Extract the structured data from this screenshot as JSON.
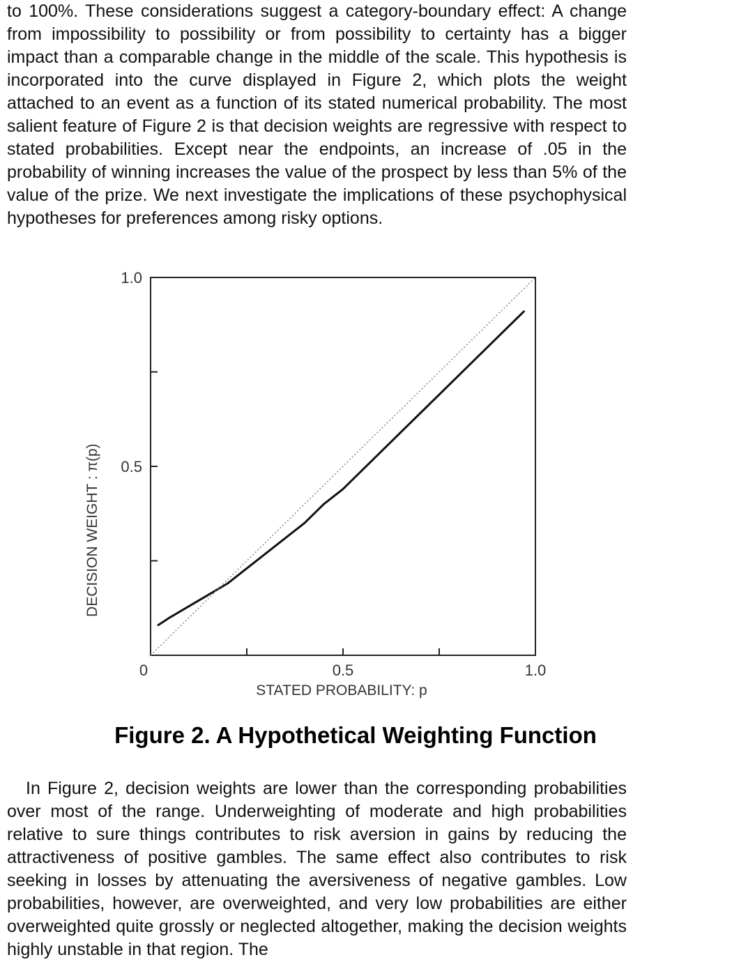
{
  "top_paragraph": "to 100%. These considerations suggest a category-boundary effect: A change from impossibility to possibility or from possibility to certainty has a bigger impact than a comparable change in the middle of the scale. This hypothesis is incorporated into the curve displayed in Figure 2, which plots the weight attached to an event as a function of its stated numerical probability. The most salient feature of Figure 2 is that decision weights are regressive with respect to stated probabilities. Except near the endpoints, an increase of .05 in the probability of winning increases the value of the prospect by less than 5% of the value of the prize. We next investigate the implications of these psychophysical hypotheses for preferences among risky options.",
  "figure_caption": "Figure 2. A Hypothetical Weighting Function",
  "bottom_paragraph": "In Figure 2, decision weights are lower than the corresponding probabilities over most of the range. Underweighting of moderate and high probabilities relative to sure things contributes to risk aversion in gains by reducing the attractiveness of positive gambles. The same effect also contributes to risk seeking in losses by attenuating the aversiveness of negative gambles. Low probabilities, however, are overweighted, and very low probabilities are either overweighted quite grossly or neglected altogether, making the decision weights highly unstable in that region. The",
  "chart_data": {
    "type": "line",
    "title": "",
    "xlabel": "STATED PROBABILITY: p",
    "ylabel": "DECISION WEIGHT : π(p)",
    "xlim": [
      0,
      1.0
    ],
    "ylim": [
      0,
      1.0
    ],
    "x_tick_labels": [
      {
        "value": 0,
        "label": "0"
      },
      {
        "value": 0.5,
        "label": "0.5"
      },
      {
        "value": 1.0,
        "label": "1.0"
      }
    ],
    "y_tick_labels": [
      {
        "value": 0.5,
        "label": "0.5"
      },
      {
        "value": 1.0,
        "label": "1.0"
      }
    ],
    "x_ticks": [
      0.25,
      0.5,
      0.75
    ],
    "y_ticks": [
      0.25,
      0.5,
      0.75
    ],
    "grid": false,
    "series": [
      {
        "style": "solid",
        "color": "#111111",
        "x": [
          0.02,
          0.05,
          0.1,
          0.15,
          0.2,
          0.25,
          0.3,
          0.35,
          0.4,
          0.45,
          0.5,
          0.55,
          0.6,
          0.65,
          0.7,
          0.75,
          0.8,
          0.85,
          0.9,
          0.95,
          0.97
        ],
        "y": [
          0.08,
          0.1,
          0.13,
          0.16,
          0.19,
          0.23,
          0.27,
          0.31,
          0.35,
          0.4,
          0.44,
          0.49,
          0.54,
          0.59,
          0.64,
          0.69,
          0.74,
          0.79,
          0.84,
          0.89,
          0.91
        ]
      },
      {
        "style": "dotted",
        "color": "#888888",
        "x": [
          0,
          1.0
        ],
        "y": [
          0,
          1.0
        ]
      }
    ]
  }
}
